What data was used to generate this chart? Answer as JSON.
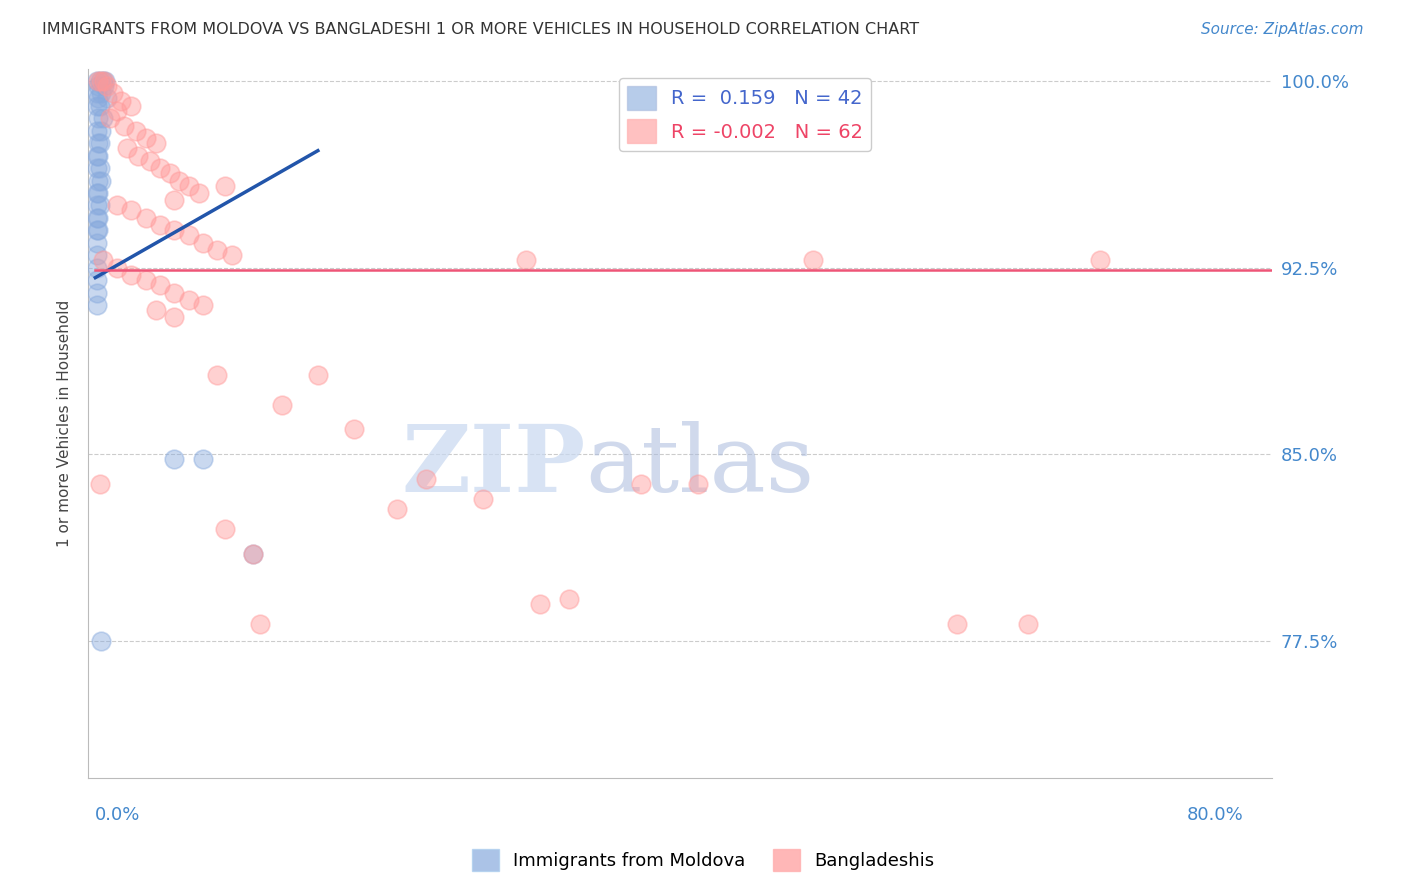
{
  "title": "IMMIGRANTS FROM MOLDOVA VS BANGLADESHI 1 OR MORE VEHICLES IN HOUSEHOLD CORRELATION CHART",
  "source": "Source: ZipAtlas.com",
  "ylabel": "1 or more Vehicles in Household",
  "ymin": 0.72,
  "ymax": 1.005,
  "xmin": -0.005,
  "xmax": 0.82,
  "legend_R1": "0.159",
  "legend_N1": "42",
  "legend_R2": "-0.002",
  "legend_N2": "62",
  "blue_color": "#88AADD",
  "pink_color": "#FF9999",
  "blue_line_color": "#2255AA",
  "pink_line_color": "#EE5577",
  "watermark_zip": "ZIP",
  "watermark_atlas": "atlas",
  "blue_line": [
    [
      0.0,
      0.921
    ],
    [
      0.155,
      0.972
    ]
  ],
  "pink_line": [
    [
      0.0,
      0.924
    ],
    [
      0.82,
      0.924
    ]
  ],
  "blue_scatter": [
    [
      0.001,
      1.0
    ],
    [
      0.003,
      1.0
    ],
    [
      0.005,
      1.0
    ],
    [
      0.007,
      1.0
    ],
    [
      0.002,
      0.998
    ],
    [
      0.006,
      0.998
    ],
    [
      0.001,
      0.995
    ],
    [
      0.004,
      0.995
    ],
    [
      0.002,
      0.993
    ],
    [
      0.008,
      0.993
    ],
    [
      0.001,
      0.99
    ],
    [
      0.003,
      0.99
    ],
    [
      0.002,
      0.985
    ],
    [
      0.005,
      0.985
    ],
    [
      0.001,
      0.98
    ],
    [
      0.004,
      0.98
    ],
    [
      0.002,
      0.975
    ],
    [
      0.003,
      0.975
    ],
    [
      0.001,
      0.97
    ],
    [
      0.002,
      0.97
    ],
    [
      0.001,
      0.965
    ],
    [
      0.003,
      0.965
    ],
    [
      0.002,
      0.96
    ],
    [
      0.004,
      0.96
    ],
    [
      0.001,
      0.955
    ],
    [
      0.002,
      0.955
    ],
    [
      0.001,
      0.95
    ],
    [
      0.003,
      0.95
    ],
    [
      0.001,
      0.945
    ],
    [
      0.002,
      0.945
    ],
    [
      0.001,
      0.94
    ],
    [
      0.002,
      0.94
    ],
    [
      0.001,
      0.935
    ],
    [
      0.001,
      0.93
    ],
    [
      0.001,
      0.925
    ],
    [
      0.001,
      0.92
    ],
    [
      0.001,
      0.915
    ],
    [
      0.001,
      0.91
    ],
    [
      0.055,
      0.848
    ],
    [
      0.075,
      0.848
    ],
    [
      0.11,
      0.81
    ],
    [
      0.004,
      0.775
    ]
  ],
  "pink_scatter": [
    [
      0.002,
      1.0
    ],
    [
      0.004,
      1.0
    ],
    [
      0.006,
      1.0
    ],
    [
      0.008,
      0.998
    ],
    [
      0.012,
      0.995
    ],
    [
      0.018,
      0.992
    ],
    [
      0.025,
      0.99
    ],
    [
      0.015,
      0.988
    ],
    [
      0.01,
      0.985
    ],
    [
      0.02,
      0.982
    ],
    [
      0.028,
      0.98
    ],
    [
      0.035,
      0.977
    ],
    [
      0.042,
      0.975
    ],
    [
      0.022,
      0.973
    ],
    [
      0.03,
      0.97
    ],
    [
      0.038,
      0.968
    ],
    [
      0.045,
      0.965
    ],
    [
      0.052,
      0.963
    ],
    [
      0.058,
      0.96
    ],
    [
      0.065,
      0.958
    ],
    [
      0.072,
      0.955
    ],
    [
      0.055,
      0.952
    ],
    [
      0.015,
      0.95
    ],
    [
      0.025,
      0.948
    ],
    [
      0.035,
      0.945
    ],
    [
      0.045,
      0.942
    ],
    [
      0.055,
      0.94
    ],
    [
      0.065,
      0.938
    ],
    [
      0.075,
      0.935
    ],
    [
      0.085,
      0.932
    ],
    [
      0.095,
      0.93
    ],
    [
      0.005,
      0.928
    ],
    [
      0.015,
      0.925
    ],
    [
      0.025,
      0.922
    ],
    [
      0.035,
      0.92
    ],
    [
      0.045,
      0.918
    ],
    [
      0.055,
      0.915
    ],
    [
      0.065,
      0.912
    ],
    [
      0.075,
      0.91
    ],
    [
      0.042,
      0.908
    ],
    [
      0.055,
      0.905
    ],
    [
      0.3,
      0.928
    ],
    [
      0.5,
      0.928
    ],
    [
      0.7,
      0.928
    ],
    [
      0.13,
      0.87
    ],
    [
      0.18,
      0.86
    ],
    [
      0.23,
      0.84
    ],
    [
      0.27,
      0.832
    ],
    [
      0.21,
      0.828
    ],
    [
      0.09,
      0.82
    ],
    [
      0.11,
      0.81
    ],
    [
      0.31,
      0.79
    ],
    [
      0.33,
      0.792
    ],
    [
      0.115,
      0.782
    ],
    [
      0.6,
      0.782
    ],
    [
      0.085,
      0.882
    ],
    [
      0.155,
      0.882
    ],
    [
      0.38,
      0.838
    ],
    [
      0.42,
      0.838
    ],
    [
      0.09,
      0.958
    ],
    [
      0.003,
      0.838
    ],
    [
      0.65,
      0.782
    ]
  ]
}
